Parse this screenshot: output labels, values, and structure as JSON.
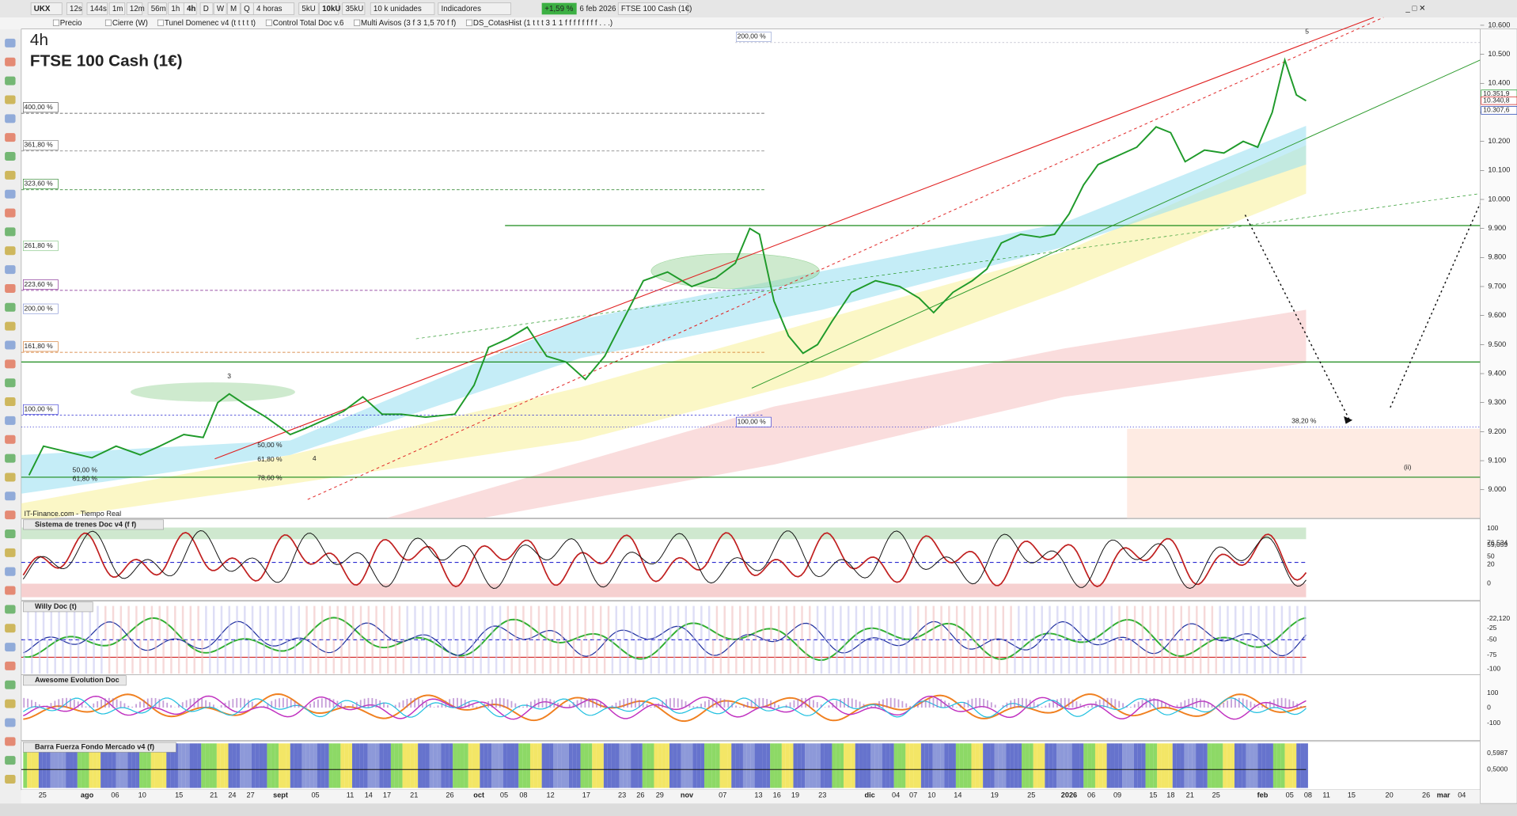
{
  "toolbar": {
    "symbol": "UKX",
    "intervals": [
      "12s",
      "144s",
      "1m",
      "12m",
      "56m",
      "1h",
      "4h",
      "D",
      "W",
      "M",
      "Q"
    ],
    "period": "4 horas",
    "units": [
      "5kU",
      "10kU",
      "35kU"
    ],
    "units_select": "10 k unidades",
    "indicators": "Indicadores",
    "change": "+1,59 %",
    "date": "6 feb 2026",
    "instrument": "FTSE 100 Cash (1€)"
  },
  "legend_bar": [
    "Precio",
    "Cierre (W)",
    "Tunel Domenec v4 (t t t t t)",
    "Control Total Doc v.6",
    "Multi Avisos (3 f 3 1,5 70 f f)",
    "DS_CotasHist (1 t t t 3 1 1 f f f f f f f f . . .)"
  ],
  "chart_data": {
    "type": "line",
    "subtitle": "4h",
    "title": "FTSE 100 Cash (1€)",
    "source": "IT-Finance.com - Tiempo Real",
    "x_labels": [
      "25",
      "ago",
      "06",
      "10",
      "15",
      "21",
      "24",
      "27",
      "sept",
      "05",
      "11",
      "14",
      "17",
      "21",
      "26",
      "oct",
      "05",
      "08",
      "12",
      "17",
      "23",
      "26",
      "29",
      "nov",
      "07",
      "13",
      "16",
      "19",
      "23",
      "dic",
      "04",
      "07",
      "10",
      "14",
      "19",
      "25",
      "2026",
      "06",
      "09",
      "15",
      "18",
      "21",
      "25",
      "feb",
      "05",
      "08",
      "11",
      "15",
      "20",
      "26",
      "mar",
      "04"
    ],
    "ylim": [
      8903,
      10587
    ],
    "yticks": [
      {
        "value": 10600,
        "label": "10.600"
      },
      {
        "value": 10500,
        "label": "10.500"
      },
      {
        "value": 10400,
        "label": "10.400"
      },
      {
        "value": 10300,
        "label": "10.300"
      },
      {
        "value": 10200,
        "label": "10.200"
      },
      {
        "value": 10100,
        "label": "10.100"
      },
      {
        "value": 10000,
        "label": "10.000"
      },
      {
        "value": 9900,
        "label": "9.900"
      },
      {
        "value": 9800,
        "label": "9.800"
      },
      {
        "value": 9700,
        "label": "9.700"
      },
      {
        "value": 9600,
        "label": "9.600"
      },
      {
        "value": 9500,
        "label": "9.500"
      },
      {
        "value": 9400,
        "label": "9.400"
      },
      {
        "value": 9300,
        "label": "9.300"
      },
      {
        "value": 9200,
        "label": "9.200"
      },
      {
        "value": 9100,
        "label": "9.100"
      },
      {
        "value": 9000,
        "label": "9.000"
      }
    ],
    "price": {
      "color": "#1f9a2a",
      "values": [
        9050,
        9150,
        9130,
        9110,
        9150,
        9120,
        9150,
        9190,
        9180,
        9300,
        9330,
        9290,
        9250,
        9190,
        9210,
        9240,
        9270,
        9320,
        9260,
        9260,
        9250,
        9260,
        9360,
        9490,
        9520,
        9560,
        9460,
        9440,
        9380,
        9460,
        9590,
        9720,
        9750,
        9700,
        9730,
        9780,
        9900,
        9880,
        9650,
        9530,
        9470,
        9500,
        9580,
        9680,
        9720,
        9700,
        9660,
        9610,
        9680,
        9720,
        9760,
        9850,
        9880,
        9870,
        9880,
        9950,
        10050,
        10120,
        10150,
        10180,
        10250,
        10230,
        10130,
        10170,
        10160,
        10200,
        10180,
        10300,
        10480,
        10360,
        10340
      ]
    },
    "price_tags": [
      "10.351,9",
      "10.340,8",
      "10.307,6"
    ],
    "annotations": [
      "400,00 %",
      "361,80 %",
      "323,60 %",
      "261,80 %",
      "223,60 %",
      "200,00 %",
      "161,80 %",
      "100,00 %",
      "200,00 %",
      "100,00 %",
      "38,20 %",
      "61,80 %",
      "50,00 %",
      "78,60 %",
      "50,00 %",
      "61,80 %",
      "(ii)",
      "3",
      "4",
      "5"
    ]
  },
  "panels": [
    {
      "title": "Sistema de trenes Doc v4 (f f)",
      "axis": [
        "100",
        "76,534",
        "59,059",
        "50",
        "20",
        "0"
      ]
    },
    {
      "title": "Willy Doc (t)",
      "axis": [
        "-22,120",
        "-25",
        "-50",
        "-75",
        "-100"
      ]
    },
    {
      "title": "Awesome Evolution Doc",
      "axis": [
        "100",
        "0",
        "-100"
      ]
    },
    {
      "title": "Barra Fuerza Fondo Mercado v4 (f)",
      "axis": [
        "0,5987",
        "0,5000"
      ]
    }
  ]
}
